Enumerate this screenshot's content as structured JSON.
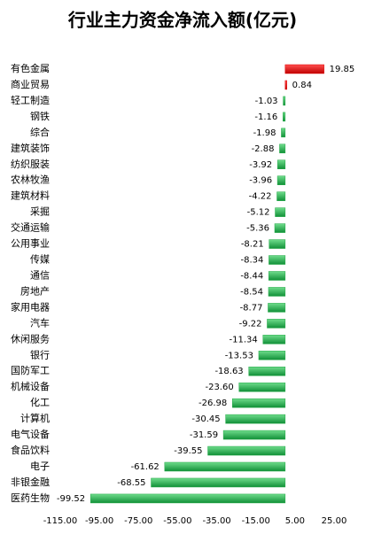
{
  "chart_data": {
    "type": "hbar",
    "title": "行业主力资金净流入额(亿元)",
    "categories": [
      "有色金属",
      "商业贸易",
      "轻工制造",
      "钢铁",
      "综合",
      "建筑装饰",
      "纺织服装",
      "农林牧渔",
      "建筑材料",
      "采掘",
      "交通运输",
      "公用事业",
      "传媒",
      "通信",
      "房地产",
      "家用电器",
      "汽车",
      "休闲服务",
      "银行",
      "国防军工",
      "机械设备",
      "化工",
      "计算机",
      "电气设备",
      "食品饮料",
      "电子",
      "非银金融",
      "医药生物"
    ],
    "values": [
      19.85,
      0.84,
      -1.03,
      -1.16,
      -1.98,
      -2.88,
      -3.92,
      -3.96,
      -4.22,
      -5.12,
      -5.36,
      -8.21,
      -8.34,
      -8.44,
      -8.54,
      -8.77,
      -9.22,
      -11.34,
      -13.53,
      -18.63,
      -23.6,
      -26.98,
      -30.45,
      -31.59,
      -39.55,
      -61.62,
      -68.55,
      -99.52
    ],
    "value_labels": [
      "19.85",
      "0.84",
      "-1.03",
      "-1.16",
      "-1.98",
      "-2.88",
      "-3.92",
      "-3.96",
      "-4.22",
      "-5.12",
      "-5.36",
      "-8.21",
      "-8.34",
      "-8.44",
      "-8.54",
      "-8.77",
      "-9.22",
      "-11.34",
      "-13.53",
      "-18.63",
      "-23.60",
      "-26.98",
      "-30.45",
      "-31.59",
      "-39.55",
      "-61.62",
      "-68.55",
      "-99.52"
    ],
    "positive_color": "#e00000",
    "negative_color": "#22a845",
    "xlim": [
      -115,
      25
    ],
    "xticks": [
      {
        "value": -115,
        "label": "-115.00"
      },
      {
        "value": -95,
        "label": "-95.00"
      },
      {
        "value": -75,
        "label": "-75.00"
      },
      {
        "value": -55,
        "label": "-55.00"
      },
      {
        "value": -35,
        "label": "-35.00"
      },
      {
        "value": -15,
        "label": "-15.00"
      },
      {
        "value": 5,
        "label": "5.00"
      },
      {
        "value": 25,
        "label": "25.00"
      }
    ]
  }
}
